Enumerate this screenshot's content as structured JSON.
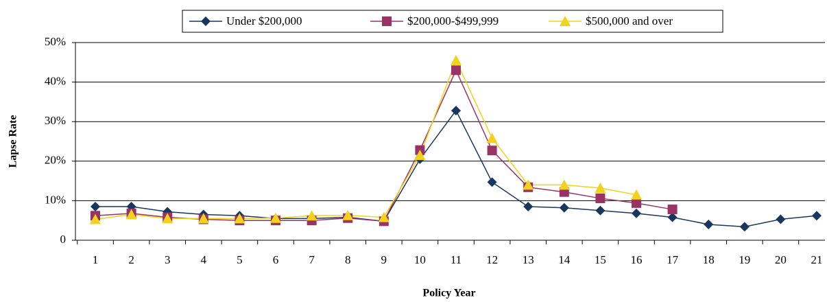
{
  "chart_data": {
    "type": "line",
    "x_label": "Policy Year",
    "y_label": "Lapse Rate",
    "categories": [
      "1",
      "2",
      "3",
      "4",
      "5",
      "6",
      "7",
      "8",
      "9",
      "10",
      "11",
      "12",
      "13",
      "14",
      "15",
      "16",
      "17",
      "18",
      "19",
      "20",
      "21"
    ],
    "series": [
      {
        "name": "Under $200,000",
        "color": "#17375e",
        "marker": "diamond",
        "values": [
          8.5,
          8.5,
          7.2,
          6.5,
          6.2,
          5.5,
          5.5,
          5.8,
          4.8,
          20.5,
          32.8,
          14.7,
          8.5,
          8.2,
          7.5,
          6.8,
          5.8,
          4.0,
          3.4,
          5.3,
          6.2
        ]
      },
      {
        "name": "$200,000-$499,999",
        "color": "#993366",
        "marker": "square",
        "values": [
          6.2,
          6.8,
          5.8,
          5.3,
          5.0,
          5.0,
          5.0,
          5.6,
          4.8,
          22.8,
          43.0,
          22.7,
          13.4,
          12.2,
          10.6,
          9.4,
          7.8,
          null,
          null,
          null,
          null
        ]
      },
      {
        "name": "$500,000 and over",
        "color": "#f2d21b",
        "marker": "triangle",
        "values": [
          5.3,
          6.5,
          5.5,
          5.5,
          5.5,
          5.6,
          6.2,
          6.3,
          5.8,
          21.5,
          45.5,
          25.8,
          14.0,
          14.0,
          13.2,
          11.5,
          null,
          null,
          null,
          null,
          null
        ]
      }
    ],
    "ylim": [
      0,
      50
    ],
    "yticks": [
      0,
      {
        "value": 10,
        "label": "10%"
      },
      {
        "value": 20,
        "label": "20%"
      },
      {
        "value": 30,
        "label": "30%"
      },
      {
        "value": 40,
        "label": "40%"
      },
      {
        "value": 50,
        "label": "50%"
      }
    ],
    "grid": true,
    "legend": "top"
  }
}
